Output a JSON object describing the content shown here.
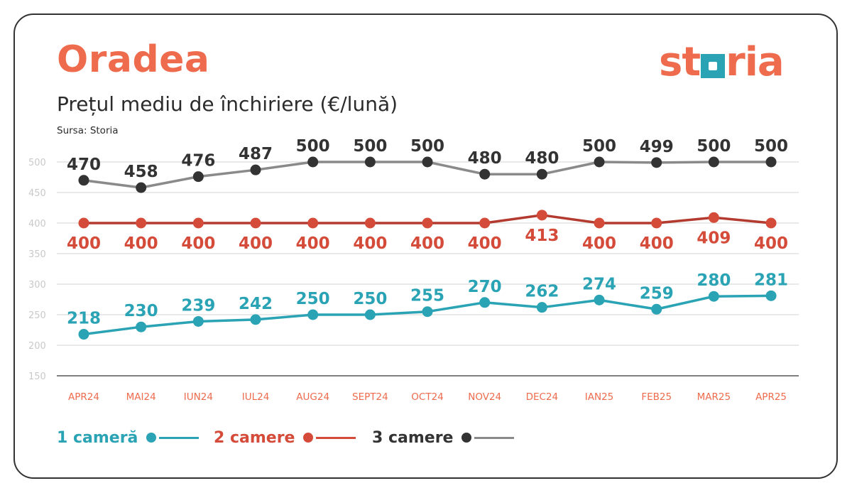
{
  "header": {
    "city": "Oradea",
    "subtitle": "Prețul mediu de închiriere (€/lună)",
    "source": "Sursa: Storia",
    "logo_left": "st",
    "logo_right": "ria"
  },
  "legend": [
    {
      "label": "1 cameră",
      "color": "#2aa3b5"
    },
    {
      "label": "2 camere",
      "color": "#d54b3a"
    },
    {
      "label": "3 camere",
      "color": "#333333"
    }
  ],
  "colors": {
    "accent": "#ee6b4d",
    "brand_teal": "#2aa3b5",
    "grid": "#dcdcdc",
    "axis_tick": "#c9c9c9",
    "month_label": "#ee6b4d",
    "line_3_camere": "#8a8a8a"
  },
  "chart_data": {
    "type": "line",
    "title": "Prețul mediu de închiriere (€/lună)",
    "categories": [
      "APR24",
      "MAI24",
      "IUN24",
      "IUL24",
      "AUG24",
      "SEPT24",
      "OCT24",
      "NOV24",
      "DEC24",
      "IAN25",
      "FEB25",
      "MAR25",
      "APR25"
    ],
    "y_ticks": [
      150,
      200,
      250,
      300,
      350,
      400,
      450,
      500
    ],
    "ylim": [
      150,
      500
    ],
    "grid": true,
    "legend_position": "bottom-left",
    "series": [
      {
        "name": "3 camere",
        "values": [
          470,
          458,
          476,
          487,
          500,
          500,
          500,
          480,
          480,
          500,
          499,
          500,
          500
        ]
      },
      {
        "name": "2 camere",
        "values": [
          400,
          400,
          400,
          400,
          400,
          400,
          400,
          400,
          413,
          400,
          400,
          409,
          400
        ]
      },
      {
        "name": "1 cameră",
        "values": [
          218,
          230,
          239,
          242,
          250,
          250,
          255,
          270,
          262,
          274,
          259,
          280,
          281
        ]
      }
    ]
  }
}
